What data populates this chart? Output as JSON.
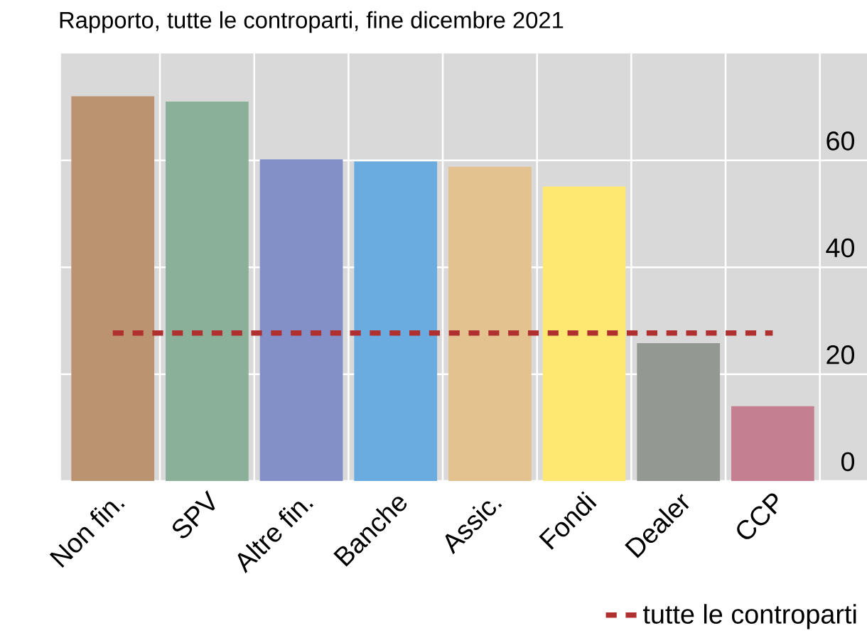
{
  "chart_data": {
    "type": "bar",
    "title": "Rapporto, tutte le controparti, fine dicembre 2021",
    "categories": [
      "Non fin.",
      "SPV",
      "Altre fin.",
      "Banche",
      "Assic.",
      "Fondi",
      "Dealer",
      "CCP"
    ],
    "values": [
      72,
      71,
      60.2,
      59.8,
      58.8,
      55.1,
      25.8,
      14
    ],
    "colors": [
      "#bc9370",
      "#8ab09a",
      "#8390c8",
      "#6aace0",
      "#e3c290",
      "#fee872",
      "#939892",
      "#c47f91"
    ],
    "ylim": [
      0,
      80
    ],
    "yticks": [
      0,
      20,
      40,
      60
    ],
    "grid": true,
    "legend": "bottom right",
    "ref_lines": [
      {
        "axis": "y",
        "value": 27.7,
        "label": "tutte le controparti",
        "color": "#b03030",
        "line_style": "dashed"
      }
    ]
  }
}
